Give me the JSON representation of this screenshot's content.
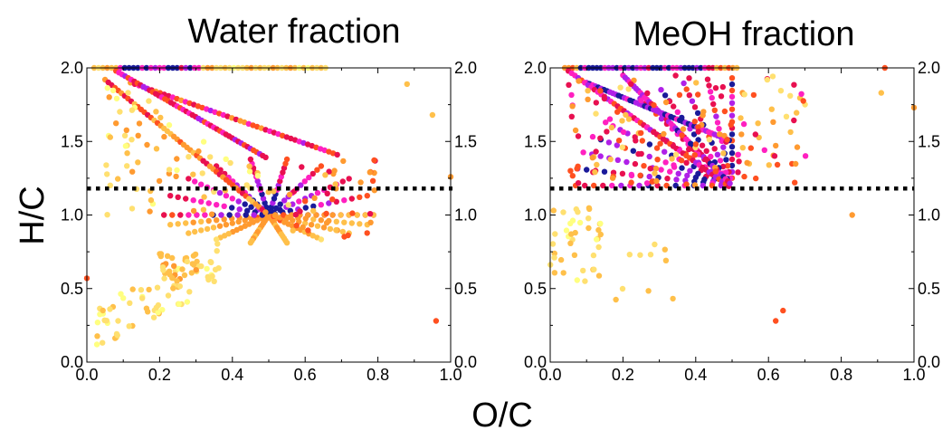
{
  "figure": {
    "shared_xlabel": "O/C",
    "shared_ylabel": "H/C"
  },
  "colors": {
    "scale": [
      "#ffff80",
      "#ffe070",
      "#ffc04a",
      "#ff9a30",
      "#ff5020",
      "#e81050",
      "#ff20c0",
      "#b020e8",
      "#1a1a9a"
    ],
    "frame": "#000000",
    "reference_line": "#000000"
  },
  "chart_data": [
    {
      "type": "scatter",
      "title": "Water fraction",
      "xlabel": "O/C",
      "ylabel": "H/C",
      "xlim": [
        0.0,
        1.0
      ],
      "ylim": [
        0.0,
        2.0
      ],
      "xticks": [
        "0.0",
        "0.2",
        "0.4",
        "0.6",
        "0.8",
        "1.0"
      ],
      "yticks": [
        "0.0",
        "0.5",
        "1.0",
        "1.5",
        "2.0"
      ],
      "right_yticks": [
        "0.0",
        "0.5",
        "1.0",
        "1.5",
        "2.0"
      ],
      "reference_line": {
        "y": 1.18,
        "style": "dotted"
      },
      "color_encoding": "fraction (light yellow = low, dark blue = high)",
      "clusters": [
        {
          "region": "H/C = 2.0 row",
          "x_range": [
            0.0,
            0.65
          ],
          "y": 2.0,
          "intensity": "high at x 0.1-0.3"
        },
        {
          "region": "diagonal band",
          "from": [
            0.05,
            1.9
          ],
          "to": [
            0.5,
            1.0
          ],
          "intensity": "medium"
        },
        {
          "region": "hub",
          "center": [
            0.5,
            1.0
          ],
          "intensity": "high (dark blue / purple)"
        },
        {
          "region": "low H/C diffuse",
          "x_range": [
            0.0,
            0.4
          ],
          "y_range": [
            0.2,
            0.9
          ],
          "intensity": "low"
        }
      ],
      "outliers": [
        {
          "x": 0.95,
          "y": 1.68
        },
        {
          "x": 0.96,
          "y": 0.28
        },
        {
          "x": 0.88,
          "y": 1.89
        },
        {
          "x": 1.0,
          "y": 1.26
        },
        {
          "x": 0.0,
          "y": 0.57
        }
      ]
    },
    {
      "type": "scatter",
      "title": "MeOH fraction",
      "xlabel": "O/C",
      "ylabel": "H/C",
      "xlim": [
        0.0,
        1.0
      ],
      "ylim": [
        0.0,
        2.0
      ],
      "xticks": [
        "0.0",
        "0.2",
        "0.4",
        "0.6",
        "0.8",
        "1.0"
      ],
      "yticks": [
        "0.0",
        "0.5",
        "1.0",
        "1.5",
        "2.0"
      ],
      "right_yticks": [
        "2.0",
        "1.5",
        "1.0",
        "0.5",
        "0.0"
      ],
      "reference_line": {
        "y": 1.18,
        "style": "dotted"
      },
      "color_encoding": "fraction (light yellow = low, dark blue = high)",
      "clusters": [
        {
          "region": "H/C = 2.0 row",
          "x_range": [
            0.05,
            0.5
          ],
          "y": 2.0,
          "intensity": "high"
        },
        {
          "region": "upper fan",
          "x_range": [
            0.05,
            0.7
          ],
          "y_range": [
            1.2,
            2.0
          ],
          "intensity": "high"
        },
        {
          "region": "low H/C sparse",
          "x_range": [
            0.0,
            0.35
          ],
          "y_range": [
            0.3,
            1.05
          ],
          "intensity": "low"
        }
      ],
      "outliers": [
        {
          "x": 0.91,
          "y": 1.83
        },
        {
          "x": 0.83,
          "y": 1.0
        },
        {
          "x": 0.62,
          "y": 0.28
        },
        {
          "x": 0.64,
          "y": 0.35
        },
        {
          "x": 0.92,
          "y": 2.0
        },
        {
          "x": 1.0,
          "y": 1.73
        }
      ]
    }
  ]
}
